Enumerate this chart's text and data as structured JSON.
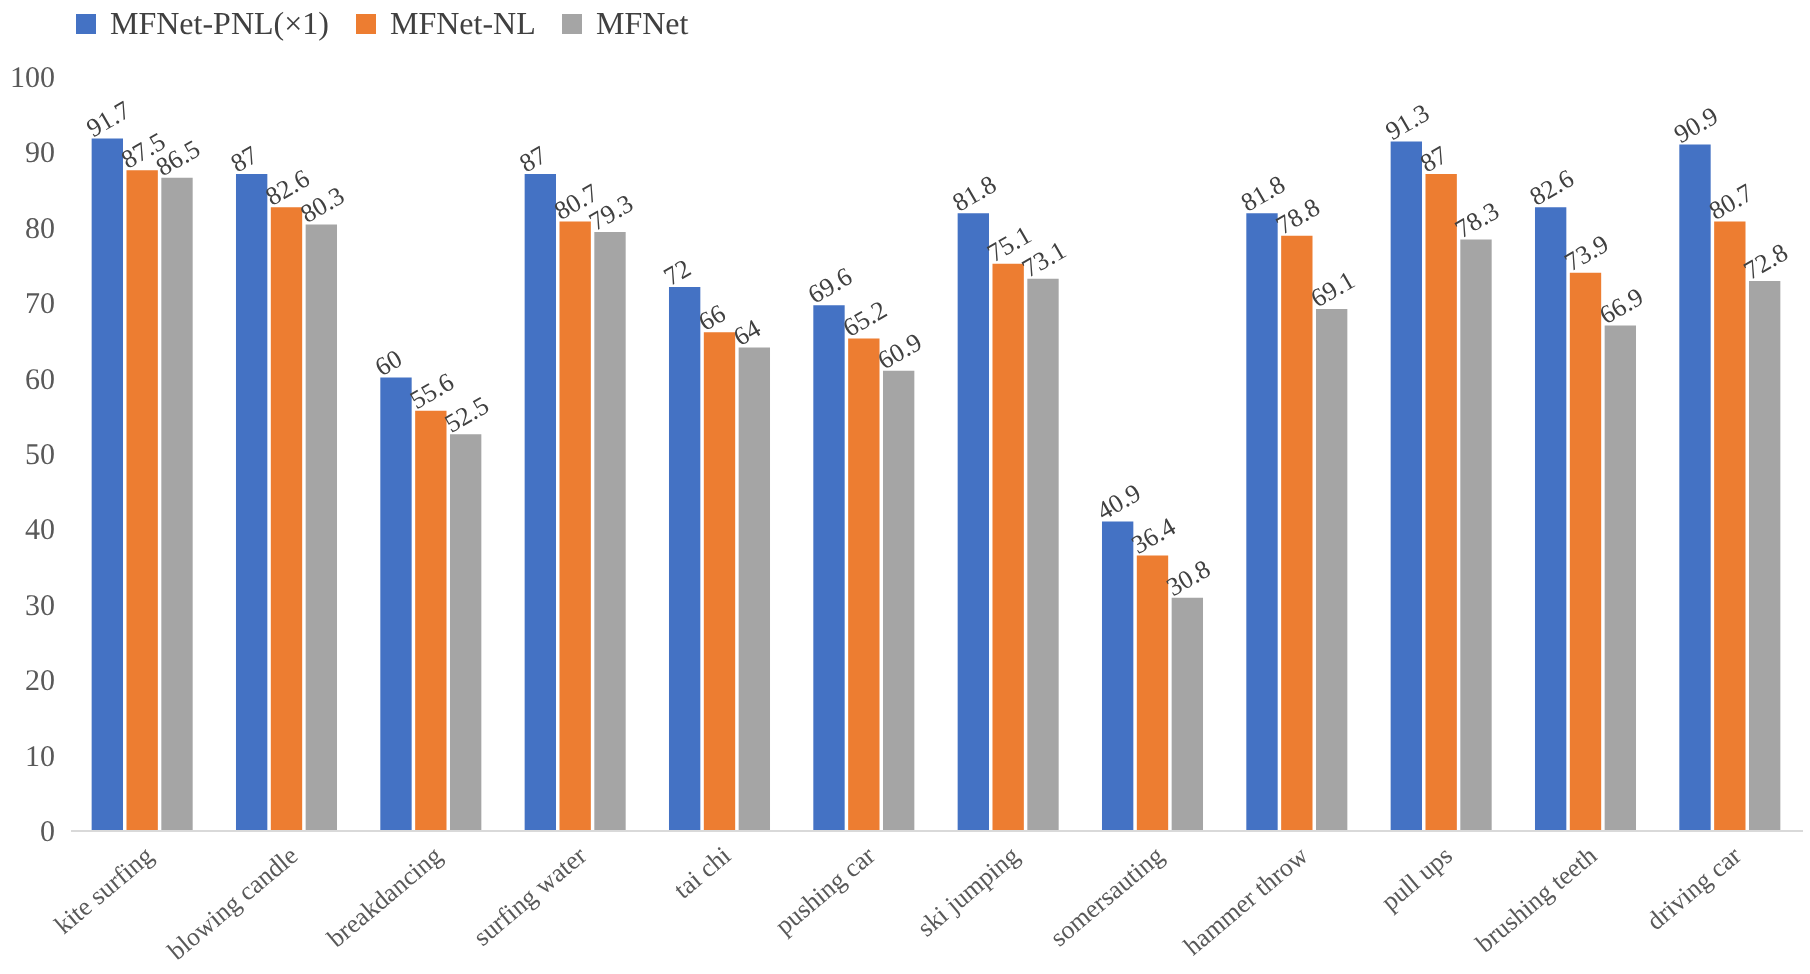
{
  "chart_data": {
    "type": "bar",
    "categories": [
      "kite surfing",
      "blowing candle",
      "breakdancing",
      "surfing water",
      "tai chi",
      "pushing car",
      "ski jumping",
      "somersauting",
      "hammer throw",
      "pull ups",
      "brushing teeth",
      "driving car"
    ],
    "series": [
      {
        "name": "MFNet-PNL(×1)",
        "color": "#4472c4",
        "values": [
          91.7,
          87,
          60,
          87,
          72,
          69.6,
          81.8,
          40.9,
          81.8,
          91.3,
          82.6,
          90.9
        ]
      },
      {
        "name": "MFNet-NL",
        "color": "#ed7d31",
        "values": [
          87.5,
          82.6,
          55.6,
          80.7,
          66,
          65.2,
          75.1,
          36.4,
          78.8,
          87,
          73.9,
          80.7
        ]
      },
      {
        "name": "MFNet",
        "color": "#a5a5a5",
        "values": [
          86.5,
          80.3,
          52.5,
          79.3,
          64,
          60.9,
          73.1,
          30.8,
          69.1,
          78.3,
          66.9,
          72.8
        ]
      }
    ],
    "ylim": [
      0,
      100
    ],
    "yticks": [
      0,
      10,
      20,
      30,
      40,
      50,
      60,
      70,
      80,
      90,
      100
    ],
    "grid": false,
    "legend": "top",
    "data_labels": true
  }
}
